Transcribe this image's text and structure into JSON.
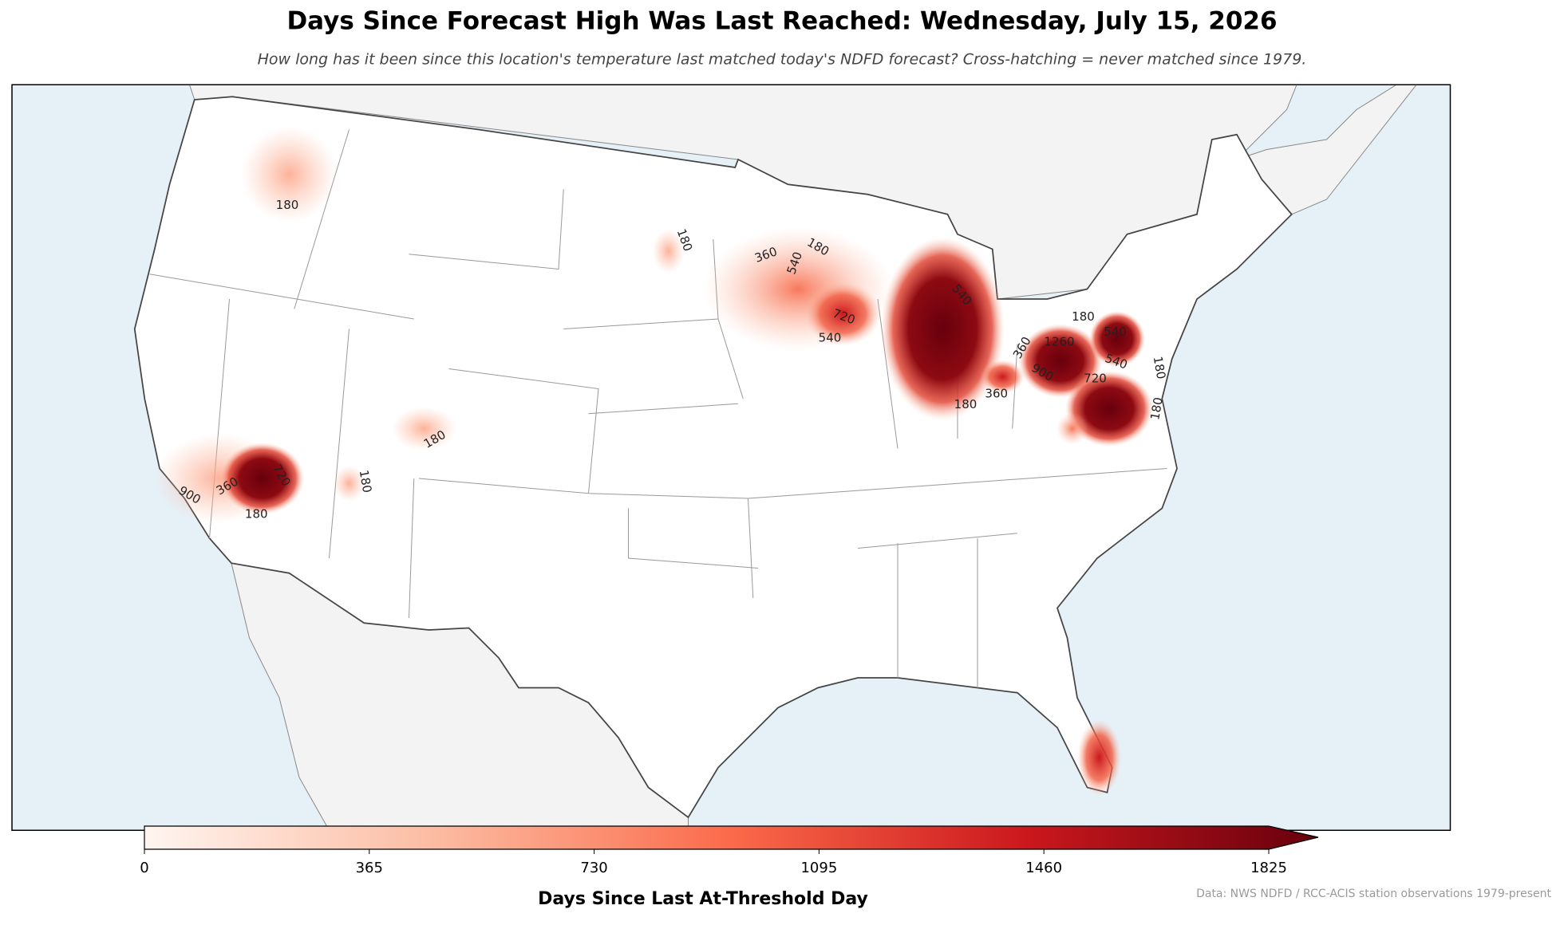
{
  "header": {
    "title": "Days Since Forecast High Was Last Reached: Wednesday, July 15, 2026",
    "subtitle": "How long has it been since this location's temperature last matched today's NDFD forecast? Cross-hatching = never matched since 1979."
  },
  "map": {
    "contour_labels": [
      180,
      180,
      360,
      540,
      180,
      720,
      540,
      540,
      180,
      360,
      360,
      900,
      1260,
      180,
      540,
      720,
      180,
      180,
      180,
      360,
      900,
      720,
      180,
      180,
      540
    ]
  },
  "colorbar": {
    "range": [
      0,
      1825
    ],
    "ticks": [
      0,
      365,
      730,
      1095,
      1460,
      1825
    ],
    "colors": [
      "#fff5f0",
      "#fcbba1",
      "#fb6a4a",
      "#cb181d",
      "#67000d"
    ],
    "label": "Days Since Last At-Threshold Day"
  },
  "credit": "Data: NWS NDFD / RCC-ACIS station observations 1979-present"
}
